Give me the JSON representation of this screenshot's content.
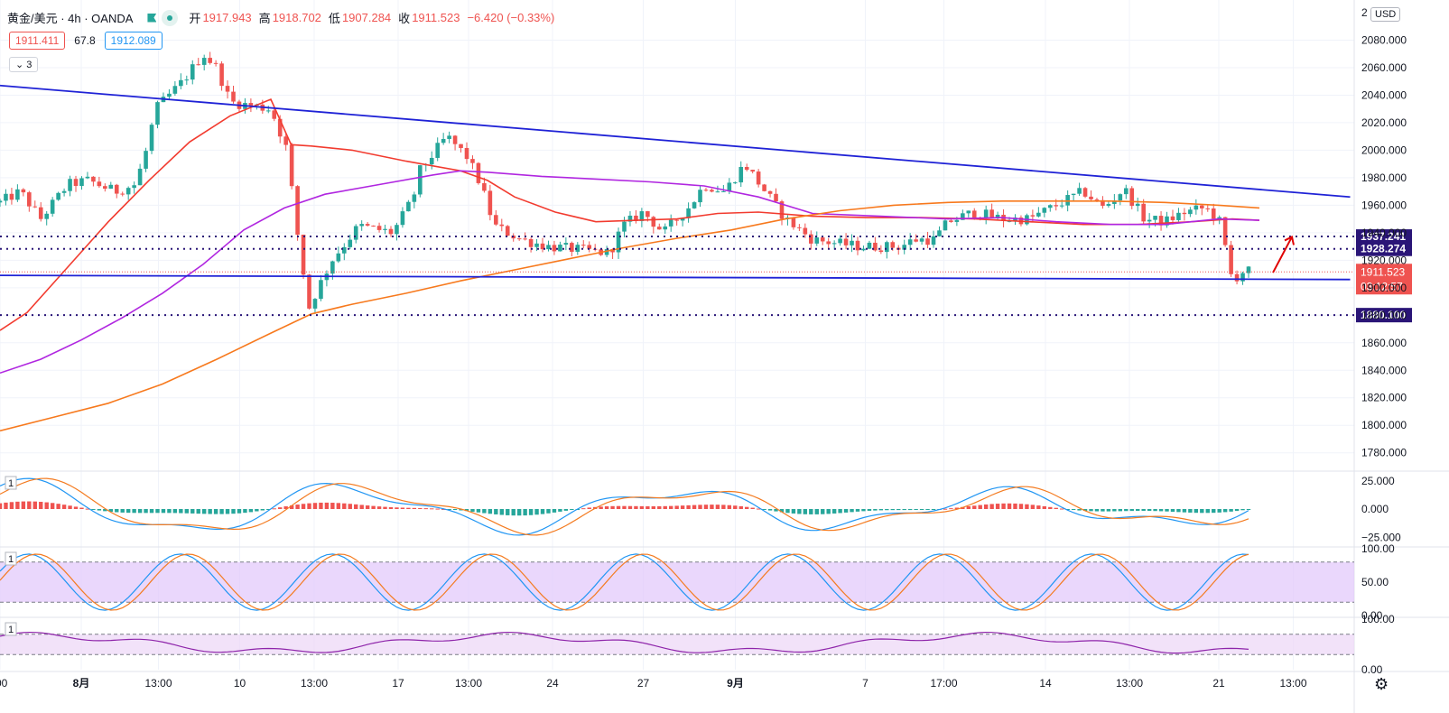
{
  "header": {
    "symbol": "黄金/美元 · 4h · OANDA",
    "open_label": "开",
    "open": "1917.943",
    "high_label": "高",
    "high": "1918.702",
    "low_label": "低",
    "low": "1907.284",
    "close_label": "收",
    "close": "1911.523",
    "change": "−6.420 (−0.33%)",
    "bid": "1911.411",
    "spread": "67.8",
    "ask": "1912.089",
    "indicators_toggle": "3",
    "currency": "USD"
  },
  "colors": {
    "up": "#26a69a",
    "down": "#ef5350",
    "trend": "#1f22d6",
    "ma_red": "#f23b2f",
    "ma_purple": "#b026e0",
    "ma_orange": "#f7791d",
    "level": "#2a1577",
    "stoch_k": "#2196f3",
    "stoch_d": "#f47b20",
    "rsi": "#8e24aa"
  },
  "chart_data": {
    "type": "candlestick",
    "y_ticks": [
      "2080.000",
      "2060.000",
      "2040.000",
      "2020.000",
      "2000.000",
      "1980.000",
      "1960.000",
      "1940.000",
      "1920.000",
      "1900.000",
      "1880.000",
      "1860.000",
      "1840.000",
      "1820.000",
      "1800.000",
      "1780.000"
    ],
    "ylim": [
      1768,
      2100
    ],
    "x_ticks": [
      {
        "label": ":00",
        "t": 0
      },
      {
        "label": "8月",
        "t": 0.06
      },
      {
        "label": "13:00",
        "t": 0.117
      },
      {
        "label": "10",
        "t": 0.177
      },
      {
        "label": "13:00",
        "t": 0.232
      },
      {
        "label": "17",
        "t": 0.294
      },
      {
        "label": "13:00",
        "t": 0.346
      },
      {
        "label": "24",
        "t": 0.408
      },
      {
        "label": "27",
        "t": 0.475
      },
      {
        "label": "9月",
        "t": 0.543
      },
      {
        "label": "7",
        "t": 0.639
      },
      {
        "label": "17:00",
        "t": 0.697
      },
      {
        "label": "14",
        "t": 0.772
      },
      {
        "label": "13:00",
        "t": 0.834
      },
      {
        "label": "21",
        "t": 0.9
      },
      {
        "label": "13:00",
        "t": 0.955
      }
    ],
    "price_levels": [
      {
        "label": "1937.241",
        "value": 1937.241,
        "color": "#2a1577",
        "style": "dotted"
      },
      {
        "label": "1928.274",
        "value": 1928.274,
        "color": "#2a1577",
        "style": "dotted"
      },
      {
        "label": "1880.100",
        "value": 1880.1,
        "color": "#2a1577",
        "style": "dotted"
      }
    ],
    "last_price": {
      "label": "1911.523",
      "value": 1911.523,
      "countdown": "03:12:57",
      "color": "#ef5350"
    },
    "trendlines": [
      {
        "t1": 0,
        "v1": 2047,
        "t2": 0.997,
        "v2": 1966
      },
      {
        "t1": 0,
        "v1": 1909,
        "t2": 0.997,
        "v2": 1906
      }
    ],
    "moving_averages": [
      {
        "color": "#f23b2f",
        "points": [
          [
            0,
            1869
          ],
          [
            0.02,
            1882
          ],
          [
            0.05,
            1915
          ],
          [
            0.08,
            1948
          ],
          [
            0.11,
            1978
          ],
          [
            0.14,
            2006
          ],
          [
            0.17,
            2025
          ],
          [
            0.2,
            2037
          ],
          [
            0.215,
            2004
          ],
          [
            0.23,
            2003
          ],
          [
            0.26,
            2000
          ],
          [
            0.3,
            1992
          ],
          [
            0.34,
            1985
          ],
          [
            0.36,
            1978
          ],
          [
            0.38,
            1966
          ],
          [
            0.41,
            1955
          ],
          [
            0.44,
            1948
          ],
          [
            0.47,
            1949
          ],
          [
            0.5,
            1950
          ],
          [
            0.53,
            1954
          ],
          [
            0.56,
            1955
          ],
          [
            0.6,
            1952
          ],
          [
            0.64,
            1951
          ],
          [
            0.68,
            1951
          ],
          [
            0.72,
            1950
          ],
          [
            0.76,
            1948
          ],
          [
            0.8,
            1946
          ],
          [
            0.84,
            1946
          ],
          [
            0.88,
            1948
          ],
          [
            0.91,
            1950
          ],
          [
            0.93,
            1949
          ]
        ]
      },
      {
        "color": "#b026e0",
        "points": [
          [
            0,
            1838
          ],
          [
            0.03,
            1848
          ],
          [
            0.06,
            1862
          ],
          [
            0.09,
            1878
          ],
          [
            0.12,
            1896
          ],
          [
            0.15,
            1917
          ],
          [
            0.18,
            1942
          ],
          [
            0.21,
            1958
          ],
          [
            0.24,
            1968
          ],
          [
            0.28,
            1975
          ],
          [
            0.32,
            1982
          ],
          [
            0.34,
            1985
          ],
          [
            0.36,
            1984
          ],
          [
            0.4,
            1981
          ],
          [
            0.44,
            1979
          ],
          [
            0.48,
            1977
          ],
          [
            0.52,
            1974
          ],
          [
            0.56,
            1966
          ],
          [
            0.6,
            1954
          ],
          [
            0.65,
            1952
          ],
          [
            0.7,
            1950
          ],
          [
            0.74,
            1951
          ],
          [
            0.78,
            1948
          ],
          [
            0.82,
            1946
          ],
          [
            0.86,
            1946
          ],
          [
            0.9,
            1950
          ],
          [
            0.93,
            1949
          ]
        ]
      },
      {
        "color": "#f7791d",
        "points": [
          [
            0,
            1796
          ],
          [
            0.04,
            1806
          ],
          [
            0.08,
            1816
          ],
          [
            0.12,
            1830
          ],
          [
            0.16,
            1848
          ],
          [
            0.2,
            1867
          ],
          [
            0.23,
            1881
          ],
          [
            0.26,
            1888
          ],
          [
            0.3,
            1896
          ],
          [
            0.34,
            1905
          ],
          [
            0.38,
            1913
          ],
          [
            0.42,
            1921
          ],
          [
            0.46,
            1929
          ],
          [
            0.5,
            1936
          ],
          [
            0.54,
            1942
          ],
          [
            0.58,
            1950
          ],
          [
            0.62,
            1956
          ],
          [
            0.66,
            1960
          ],
          [
            0.7,
            1962
          ],
          [
            0.74,
            1963
          ],
          [
            0.78,
            1963
          ],
          [
            0.82,
            1963
          ],
          [
            0.86,
            1962
          ],
          [
            0.9,
            1960
          ],
          [
            0.93,
            1958
          ]
        ]
      }
    ],
    "candles_key": [
      [
        0,
        1962
      ],
      [
        0.015,
        1970
      ],
      [
        0.03,
        1950
      ],
      [
        0.05,
        1975
      ],
      [
        0.065,
        1978
      ],
      [
        0.085,
        1970
      ],
      [
        0.1,
        1975
      ],
      [
        0.108,
        2000
      ],
      [
        0.115,
        2030
      ],
      [
        0.135,
        2050
      ],
      [
        0.15,
        2070
      ],
      [
        0.16,
        2060
      ],
      [
        0.17,
        2035
      ],
      [
        0.2,
        2030
      ],
      [
        0.212,
        2000
      ],
      [
        0.218,
        1950
      ],
      [
        0.228,
        1885
      ],
      [
        0.235,
        1900
      ],
      [
        0.245,
        1920
      ],
      [
        0.265,
        1945
      ],
      [
        0.29,
        1940
      ],
      [
        0.305,
        1965
      ],
      [
        0.31,
        1985
      ],
      [
        0.33,
        2010
      ],
      [
        0.345,
        1995
      ],
      [
        0.355,
        1975
      ],
      [
        0.365,
        1945
      ],
      [
        0.385,
        1935
      ],
      [
        0.405,
        1930
      ],
      [
        0.425,
        1928
      ],
      [
        0.45,
        1925
      ],
      [
        0.46,
        1945
      ],
      [
        0.475,
        1955
      ],
      [
        0.49,
        1940
      ],
      [
        0.51,
        1960
      ],
      [
        0.52,
        1975
      ],
      [
        0.535,
        1970
      ],
      [
        0.55,
        1990
      ],
      [
        0.565,
        1970
      ],
      [
        0.58,
        1950
      ],
      [
        0.6,
        1935
      ],
      [
        0.62,
        1932
      ],
      [
        0.635,
        1930
      ],
      [
        0.665,
        1930
      ],
      [
        0.675,
        1935
      ],
      [
        0.69,
        1935
      ],
      [
        0.7,
        1948
      ],
      [
        0.72,
        1955
      ],
      [
        0.74,
        1950
      ],
      [
        0.76,
        1950
      ],
      [
        0.78,
        1960
      ],
      [
        0.8,
        1970
      ],
      [
        0.815,
        1958
      ],
      [
        0.83,
        1972
      ],
      [
        0.845,
        1950
      ],
      [
        0.86,
        1948
      ],
      [
        0.875,
        1955
      ],
      [
        0.89,
        1958
      ],
      [
        0.9,
        1950
      ],
      [
        0.905,
        1928
      ],
      [
        0.91,
        1905
      ],
      [
        0.918,
        1912
      ]
    ],
    "macd": {
      "y_ticks": [
        "25.000",
        "0.000",
        "−25.000"
      ],
      "ylim": [
        -32,
        32
      ],
      "label": "1"
    },
    "stochastic": {
      "y_ticks": [
        "100.00",
        "50.00",
        "0.00"
      ],
      "ylim": [
        0,
        100
      ],
      "band": [
        20,
        80
      ],
      "label": "1"
    },
    "rsi": {
      "y_ticks": [
        "100.00",
        "0.00"
      ],
      "ylim": [
        0,
        100
      ],
      "band": [
        30,
        70
      ],
      "label": "1"
    }
  }
}
